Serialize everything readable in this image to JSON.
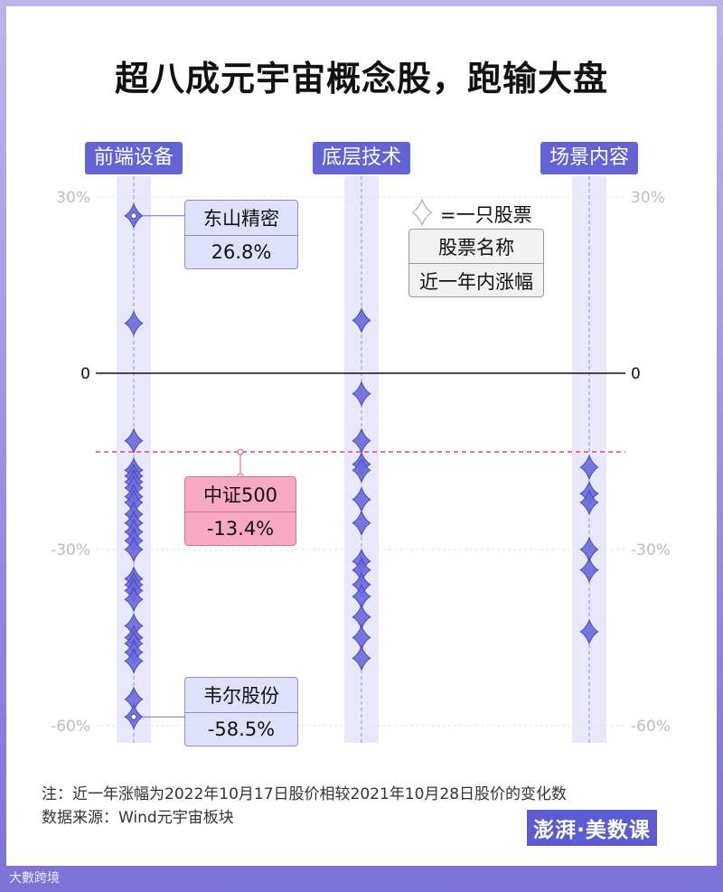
{
  "title": "超八成元宇宙概念股，跑输大盘",
  "legend": {
    "marker_label": "=一只股票",
    "name_label": "股票名称",
    "change_label": "近一年内涨幅"
  },
  "note": "注：近一年涨幅为2022年10月17日股价相较2021年10月28日股价的变化数",
  "source": "数据来源：Wind元宇宙板块",
  "brand": "澎湃·美数课",
  "watermark": "大數跨境",
  "chart_data": {
    "type": "scatter",
    "title": "超八成元宇宙概念股，跑输大盘",
    "categories": [
      "前端设备",
      "底层技术",
      "场景内容"
    ],
    "yticks": [
      {
        "value": 30,
        "label": "30%"
      },
      {
        "value": 0,
        "label": "0"
      },
      {
        "value": -30,
        "label": "-30%"
      },
      {
        "value": -60,
        "label": "-60%"
      }
    ],
    "ylim": [
      -62,
      32
    ],
    "series": [
      {
        "category": "前端设备",
        "values": [
          26.8,
          8.5,
          -11.5,
          -16.5,
          -17.5,
          -18.5,
          -19.5,
          -21,
          -22,
          -24,
          -25.5,
          -27,
          -28.5,
          -30,
          -35,
          -36,
          -37,
          -38.5,
          -43,
          -45,
          -46,
          -47.5,
          -49,
          -55.5,
          -58.5
        ]
      },
      {
        "category": "底层技术",
        "values": [
          9,
          -3.5,
          -11.5,
          -15.5,
          -16.5,
          -21.5,
          -25.5,
          -32,
          -33.5,
          -36,
          -38,
          -41.5,
          -45,
          -48.5
        ]
      },
      {
        "category": "场景内容",
        "values": [
          -16,
          -20.5,
          -22,
          -30,
          -33.5,
          -44
        ]
      }
    ],
    "benchmark": {
      "name": "中证500",
      "value": -13.4,
      "label": "-13.4%"
    },
    "annotations": [
      {
        "name": "东山精密",
        "value": 26.8,
        "label": "26.8%"
      },
      {
        "name": "韦尔股份",
        "value": -58.5,
        "label": "-58.5%"
      }
    ]
  }
}
